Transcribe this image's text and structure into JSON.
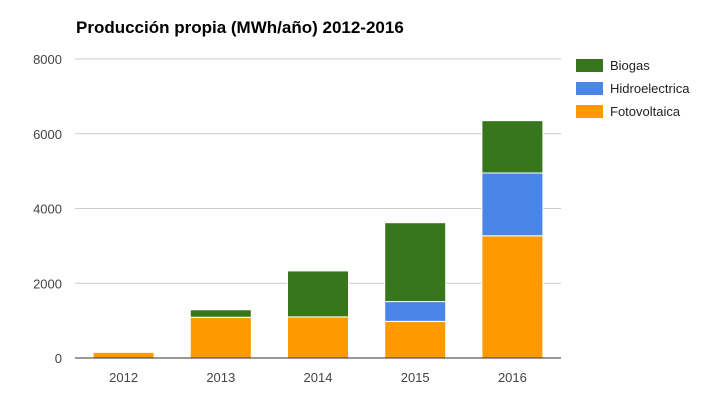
{
  "chart_data": {
    "type": "bar",
    "stacked": true,
    "title": "Producción propia (MWh/año) 2012-2016",
    "xlabel": "",
    "ylabel": "",
    "categories": [
      "2012",
      "2013",
      "2014",
      "2015",
      "2016"
    ],
    "ylim": [
      0,
      8000
    ],
    "yticks": [
      "0",
      "2000",
      "4000",
      "6000",
      "8000"
    ],
    "grid": true,
    "legend_position": "right",
    "series": [
      {
        "name": "Fotovoltaica",
        "color": "#ff9900",
        "values": [
          150,
          1090,
          1100,
          980,
          3270
        ]
      },
      {
        "name": "Hidroelectrica",
        "color": "#4a86e8",
        "values": [
          0,
          0,
          0,
          530,
          1680
        ]
      },
      {
        "name": "Biogas",
        "color": "#38761d",
        "values": [
          0,
          200,
          1230,
          2110,
          1400
        ]
      }
    ],
    "legend_order": [
      "Biogas",
      "Hidroelectrica",
      "Fotovoltaica"
    ]
  }
}
